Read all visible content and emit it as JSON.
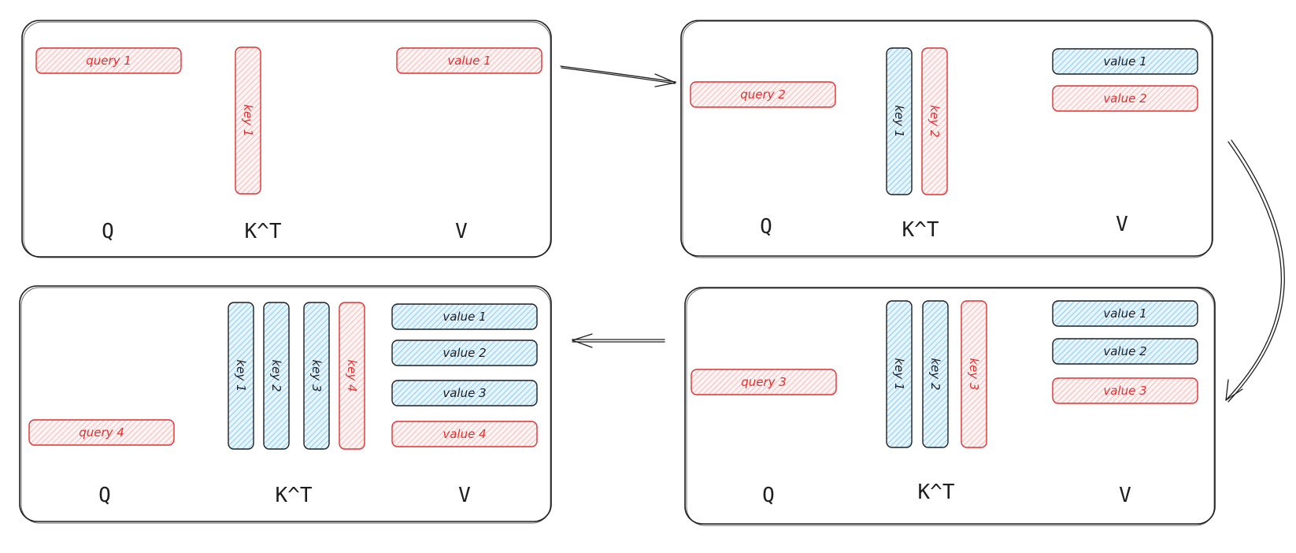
{
  "colors": {
    "new": "#e03131",
    "cached": "#a5d8ff",
    "stroke": "#1e1e1e"
  },
  "panels": [
    {
      "query": "query 1",
      "keys": [
        {
          "label": "key 1",
          "state": "new"
        }
      ],
      "values": [
        {
          "label": "value 1",
          "state": "new"
        }
      ],
      "labels": {
        "q": "Q",
        "k": "K^T",
        "v": "V"
      }
    },
    {
      "query": "query 2",
      "keys": [
        {
          "label": "key 1",
          "state": "cached"
        },
        {
          "label": "key 2",
          "state": "new"
        }
      ],
      "values": [
        {
          "label": "value 1",
          "state": "cached"
        },
        {
          "label": "value 2",
          "state": "new"
        }
      ],
      "labels": {
        "q": "Q",
        "k": "K^T",
        "v": "V"
      }
    },
    {
      "query": "query 3",
      "keys": [
        {
          "label": "key 1",
          "state": "cached"
        },
        {
          "label": "key 2",
          "state": "cached"
        },
        {
          "label": "key 3",
          "state": "new"
        }
      ],
      "values": [
        {
          "label": "value 1",
          "state": "cached"
        },
        {
          "label": "value 2",
          "state": "cached"
        },
        {
          "label": "value 3",
          "state": "new"
        }
      ],
      "labels": {
        "q": "Q",
        "k": "K^T",
        "v": "V"
      }
    },
    {
      "query": "query 4",
      "keys": [
        {
          "label": "key 1",
          "state": "cached"
        },
        {
          "label": "key 2",
          "state": "cached"
        },
        {
          "label": "key 3",
          "state": "cached"
        },
        {
          "label": "key 4",
          "state": "new"
        }
      ],
      "values": [
        {
          "label": "value 1",
          "state": "cached"
        },
        {
          "label": "value 2",
          "state": "cached"
        },
        {
          "label": "value 3",
          "state": "cached"
        },
        {
          "label": "value 4",
          "state": "new"
        }
      ],
      "labels": {
        "q": "Q",
        "k": "K^T",
        "v": "V"
      }
    }
  ]
}
